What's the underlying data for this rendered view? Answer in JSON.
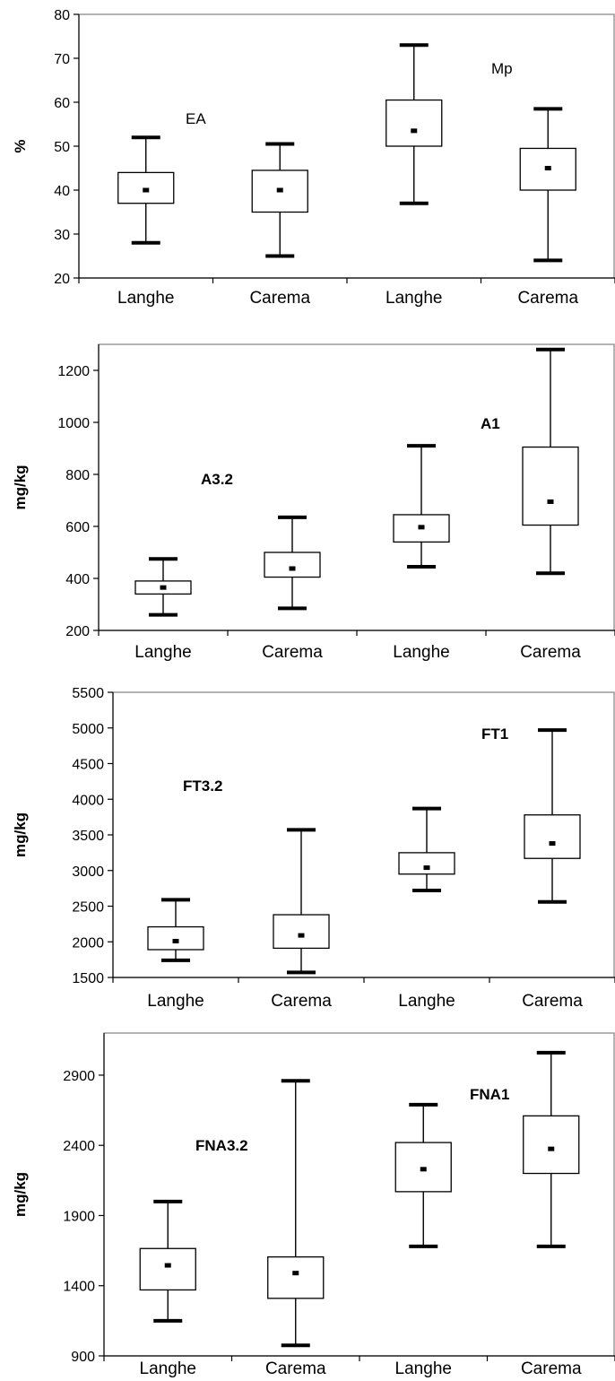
{
  "chart_data": [
    {
      "type": "boxplot",
      "ylabel": "%",
      "ylim": [
        20,
        80
      ],
      "yticks": [
        20,
        30,
        40,
        50,
        60,
        70,
        80
      ],
      "categories": [
        "Langhe",
        "Carema",
        "Langhe",
        "Carema"
      ],
      "boxes": [
        {
          "category": "Langhe",
          "whisker_low": 28,
          "q1": 37,
          "median": 40,
          "q3": 44,
          "whisker_high": 52
        },
        {
          "category": "Carema",
          "whisker_low": 25,
          "q1": 35,
          "median": 40,
          "q3": 44.5,
          "whisker_high": 50.5
        },
        {
          "category": "Langhe",
          "whisker_low": 37,
          "q1": 50,
          "median": 53.5,
          "q3": 60.5,
          "whisker_high": 73
        },
        {
          "category": "Carema",
          "whisker_low": 24,
          "q1": 40,
          "median": 45,
          "q3": 49.5,
          "whisker_high": 58.5
        }
      ],
      "annotations": [
        {
          "text": "EA",
          "bold": false
        },
        {
          "text": "Mp",
          "bold": false
        }
      ]
    },
    {
      "type": "boxplot",
      "ylabel": "mg/kg",
      "ylim": [
        200,
        1300
      ],
      "yticks": [
        200,
        400,
        600,
        800,
        1000,
        1200
      ],
      "categories": [
        "Langhe",
        "Carema",
        "Langhe",
        "Carema"
      ],
      "boxes": [
        {
          "category": "Langhe",
          "whisker_low": 260,
          "q1": 340,
          "median": 365,
          "q3": 390,
          "whisker_high": 475
        },
        {
          "category": "Carema",
          "whisker_low": 285,
          "q1": 405,
          "median": 438,
          "q3": 500,
          "whisker_high": 635
        },
        {
          "category": "Langhe",
          "whisker_low": 445,
          "q1": 540,
          "median": 597,
          "q3": 645,
          "whisker_high": 910
        },
        {
          "category": "Carema",
          "whisker_low": 420,
          "q1": 605,
          "median": 695,
          "q3": 905,
          "whisker_high": 1280
        }
      ],
      "annotations": [
        {
          "text": "A3.2",
          "bold": true
        },
        {
          "text": "A1",
          "bold": true
        }
      ]
    },
    {
      "type": "boxplot",
      "ylabel": "mg/kg",
      "ylim": [
        1500,
        5500
      ],
      "yticks": [
        1500,
        2000,
        2500,
        3000,
        3500,
        4000,
        4500,
        5000,
        5500
      ],
      "categories": [
        "Langhe",
        "Carema",
        "Langhe",
        "Carema"
      ],
      "boxes": [
        {
          "category": "Langhe",
          "whisker_low": 1740,
          "q1": 1890,
          "median": 2010,
          "q3": 2210,
          "whisker_high": 2590
        },
        {
          "category": "Carema",
          "whisker_low": 1570,
          "q1": 1910,
          "median": 2090,
          "q3": 2380,
          "whisker_high": 3570
        },
        {
          "category": "Langhe",
          "whisker_low": 2720,
          "q1": 2950,
          "median": 3040,
          "q3": 3250,
          "whisker_high": 3870
        },
        {
          "category": "Carema",
          "whisker_low": 2560,
          "q1": 3170,
          "median": 3380,
          "q3": 3780,
          "whisker_high": 4970
        }
      ],
      "annotations": [
        {
          "text": "FT3.2",
          "bold": true
        },
        {
          "text": "FT1",
          "bold": true
        }
      ]
    },
    {
      "type": "boxplot",
      "ylabel": "mg/kg",
      "ylim": [
        900,
        3200
      ],
      "yticks": [
        900,
        1400,
        1900,
        2400,
        2900
      ],
      "categories": [
        "Langhe",
        "Carema",
        "Langhe",
        "Carema"
      ],
      "boxes": [
        {
          "category": "Langhe",
          "whisker_low": 1150,
          "q1": 1370,
          "median": 1545,
          "q3": 1665,
          "whisker_high": 2000
        },
        {
          "category": "Carema",
          "whisker_low": 975,
          "q1": 1310,
          "median": 1490,
          "q3": 1605,
          "whisker_high": 2860
        },
        {
          "category": "Langhe",
          "whisker_low": 1680,
          "q1": 2070,
          "median": 2230,
          "q3": 2420,
          "whisker_high": 2690
        },
        {
          "category": "Carema",
          "whisker_low": 1680,
          "q1": 2200,
          "median": 2375,
          "q3": 2610,
          "whisker_high": 3060
        }
      ],
      "annotations": [
        {
          "text": "FNA3.2",
          "bold": true
        },
        {
          "text": "FNA1",
          "bold": true
        }
      ]
    }
  ]
}
